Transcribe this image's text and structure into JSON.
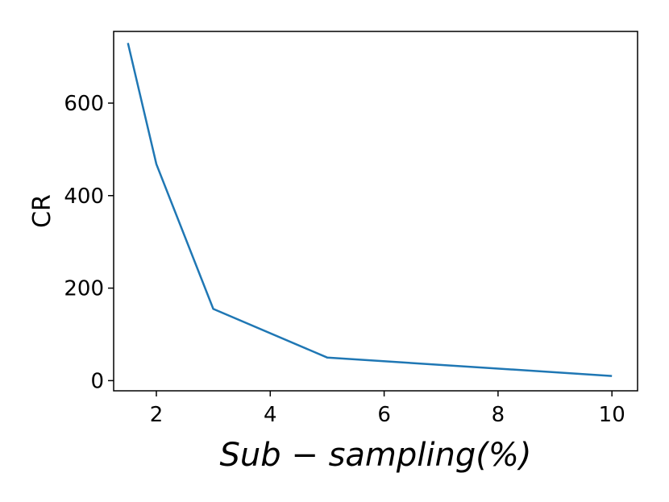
{
  "chart_data": {
    "type": "line",
    "title": "",
    "xlabel": "Sub − sampling(%)",
    "ylabel": "CR",
    "xlim": [
      1.25,
      10.45
    ],
    "ylim": [
      -22,
      755
    ],
    "x_ticks": [
      2,
      4,
      6,
      8,
      10
    ],
    "y_ticks": [
      0,
      200,
      400,
      600
    ],
    "grid": false,
    "line_color": "#1f77b4",
    "series": [
      {
        "x": [
          1.5,
          2,
          3,
          5,
          10
        ],
        "y": [
          730,
          468,
          155,
          50,
          10
        ]
      }
    ]
  }
}
